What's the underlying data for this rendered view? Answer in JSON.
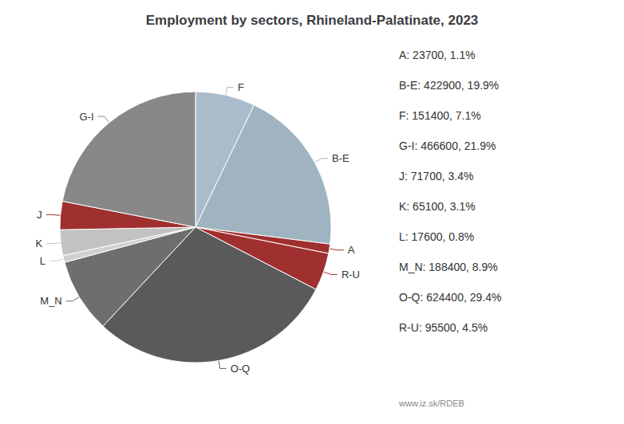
{
  "chart_data": {
    "type": "pie",
    "title": "Employment by sectors, Rhineland-Palatinate, 2023",
    "categories": [
      "F",
      "B-E",
      "A",
      "R-U",
      "O-Q",
      "M_N",
      "L",
      "K",
      "J",
      "G-I"
    ],
    "values": [
      151400,
      422900,
      23700,
      95500,
      624400,
      188400,
      17600,
      65100,
      71700,
      466600
    ],
    "colors": [
      "#aabccc",
      "#9fb4c0",
      "#a03030",
      "#a03030",
      "#5a5a5a",
      "#6e6e6e",
      "#d0d0d0",
      "#c2c2c2",
      "#a03030",
      "#888888"
    ],
    "annotations": [
      "A: 23700, 1.1%",
      "B-E: 422900, 19.9%",
      "F: 151400, 7.1%",
      "G-I: 466600, 21.9%",
      "J: 71700, 3.4%",
      "K: 65100, 3.1%",
      "L: 17600, 0.8%",
      "M_N: 188400, 8.9%",
      "O-Q: 624400, 29.4%",
      "R-U: 95500, 4.5%",
      "www.iz.sk/RDEB"
    ]
  }
}
